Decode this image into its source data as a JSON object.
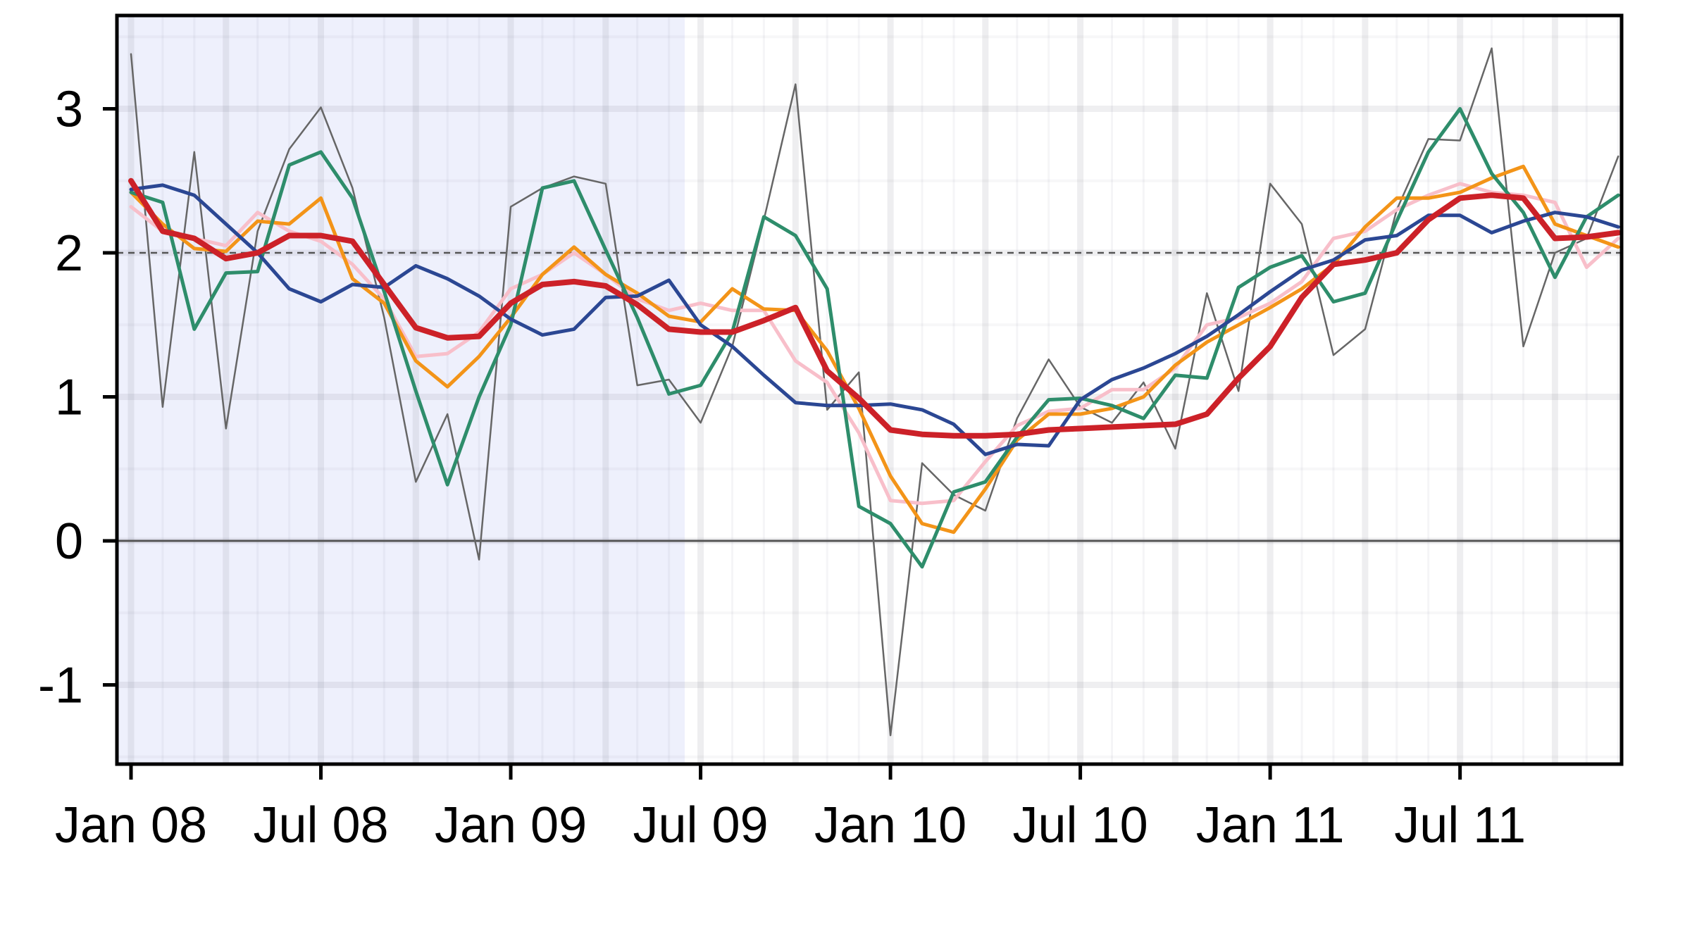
{
  "chart_data": {
    "type": "line",
    "title": "",
    "xlabel": "",
    "ylabel": "",
    "xlim": [
      "2008-01",
      "2011-12"
    ],
    "ylim": [
      -1.6,
      3.65
    ],
    "y_ticks": [
      -1,
      0,
      1,
      2,
      3
    ],
    "y_tick_labels": [
      "-1",
      "0",
      "1",
      "2",
      "3"
    ],
    "x_ticks": [
      "2008-01",
      "2008-07",
      "2009-01",
      "2009-07",
      "2010-01",
      "2010-07",
      "2011-01",
      "2011-07"
    ],
    "x_tick_labels": [
      "Jan 08",
      "Jul 08",
      "Jan 09",
      "Jul 09",
      "Jan 10",
      "Jul 10",
      "Jan 11",
      "Jul 11"
    ],
    "grid": true,
    "shaded_region": {
      "start": "2008-01",
      "end": "2009-06",
      "color": "#eef0fc"
    },
    "reference_lines": [
      {
        "y": 2,
        "style": "dashed",
        "color": "#555555"
      },
      {
        "y": 0,
        "style": "solid",
        "color": "#555555"
      }
    ],
    "x": [
      "2008-01",
      "2008-02",
      "2008-03",
      "2008-04",
      "2008-05",
      "2008-06",
      "2008-07",
      "2008-08",
      "2008-09",
      "2008-10",
      "2008-11",
      "2008-12",
      "2009-01",
      "2009-02",
      "2009-03",
      "2009-04",
      "2009-05",
      "2009-06",
      "2009-07",
      "2009-08",
      "2009-09",
      "2009-10",
      "2009-11",
      "2009-12",
      "2010-01",
      "2010-02",
      "2010-03",
      "2010-04",
      "2010-05",
      "2010-06",
      "2010-07",
      "2010-08",
      "2010-09",
      "2010-10",
      "2010-11",
      "2010-12",
      "2011-01",
      "2011-02",
      "2011-03",
      "2011-04",
      "2011-05",
      "2011-06",
      "2011-07",
      "2011-08",
      "2011-09",
      "2011-10",
      "2011-11",
      "2011-12"
    ],
    "series": [
      {
        "color": "#666666",
        "width": 2.5,
        "values": [
          3.38,
          0.93,
          2.7,
          0.78,
          2.15,
          2.72,
          3.01,
          2.45,
          1.55,
          0.41,
          0.88,
          -0.13,
          2.32,
          2.45,
          2.53,
          2.48,
          1.08,
          1.12,
          0.82,
          1.35,
          2.23,
          3.17,
          0.91,
          1.17,
          -1.35,
          0.54,
          0.32,
          0.21,
          0.85,
          1.26,
          0.93,
          0.82,
          1.1,
          0.64,
          1.72,
          1.04,
          2.48,
          2.2,
          1.29,
          1.47,
          2.3,
          2.79,
          2.78,
          3.42,
          1.35,
          2.0,
          2.1,
          2.67
        ]
      },
      {
        "color": "#f8bfca",
        "width": 5,
        "values": [
          2.32,
          2.15,
          2.1,
          2.05,
          2.28,
          2.15,
          2.08,
          1.92,
          1.68,
          1.28,
          1.3,
          1.45,
          1.75,
          1.85,
          2.0,
          1.85,
          1.68,
          1.6,
          1.65,
          1.6,
          1.6,
          1.25,
          1.1,
          0.75,
          0.28,
          0.26,
          0.28,
          0.55,
          0.8,
          0.9,
          0.92,
          1.05,
          1.05,
          1.2,
          1.5,
          1.55,
          1.65,
          1.8,
          2.1,
          2.15,
          2.3,
          2.4,
          2.48,
          2.42,
          2.4,
          2.35,
          1.9,
          2.1
        ]
      },
      {
        "color": "#f39418",
        "width": 5,
        "values": [
          2.42,
          2.2,
          2.03,
          2.01,
          2.22,
          2.2,
          2.38,
          1.82,
          1.65,
          1.25,
          1.07,
          1.28,
          1.55,
          1.85,
          2.04,
          1.85,
          1.72,
          1.56,
          1.52,
          1.75,
          1.61,
          1.6,
          1.32,
          0.92,
          0.45,
          0.12,
          0.06,
          0.36,
          0.7,
          0.88,
          0.88,
          0.92,
          1.0,
          1.22,
          1.38,
          1.5,
          1.62,
          1.75,
          1.92,
          2.18,
          2.38,
          2.38,
          2.42,
          2.52,
          2.6,
          2.2,
          2.12,
          2.04
        ]
      },
      {
        "color": "#2e8d6b",
        "width": 5,
        "values": [
          2.42,
          2.35,
          1.47,
          1.86,
          1.87,
          2.61,
          2.7,
          2.38,
          1.73,
          1.04,
          0.39,
          1.0,
          1.5,
          2.45,
          2.5,
          2.02,
          1.55,
          1.02,
          1.08,
          1.45,
          2.25,
          2.12,
          1.75,
          0.24,
          0.12,
          -0.18,
          0.34,
          0.41,
          0.72,
          0.98,
          0.99,
          0.94,
          0.85,
          1.15,
          1.13,
          1.76,
          1.9,
          1.98,
          1.66,
          1.72,
          2.22,
          2.7,
          3.0,
          2.55,
          2.28,
          1.83,
          2.25,
          2.4
        ]
      },
      {
        "color": "#2b4793",
        "width": 5,
        "values": [
          2.44,
          2.47,
          2.4,
          2.2,
          2.0,
          1.75,
          1.66,
          1.78,
          1.76,
          1.91,
          1.82,
          1.7,
          1.54,
          1.43,
          1.47,
          1.69,
          1.7,
          1.81,
          1.5,
          1.35,
          1.15,
          0.96,
          0.94,
          0.94,
          0.95,
          0.91,
          0.81,
          0.6,
          0.67,
          0.66,
          0.98,
          1.12,
          1.2,
          1.3,
          1.42,
          1.57,
          1.73,
          1.88,
          1.95,
          2.09,
          2.12,
          2.26,
          2.26,
          2.14,
          2.22,
          2.28,
          2.25,
          2.18
        ]
      },
      {
        "color": "#cc2128",
        "width": 8,
        "values": [
          2.5,
          2.15,
          2.1,
          1.96,
          2.0,
          2.12,
          2.12,
          2.08,
          1.78,
          1.48,
          1.41,
          1.42,
          1.65,
          1.78,
          1.8,
          1.77,
          1.64,
          1.47,
          1.45,
          1.45,
          1.53,
          1.62,
          1.18,
          0.99,
          0.77,
          0.74,
          0.73,
          0.73,
          0.74,
          0.77,
          0.78,
          0.79,
          0.8,
          0.81,
          0.88,
          1.13,
          1.35,
          1.69,
          1.92,
          1.95,
          2.0,
          2.23,
          2.38,
          2.4,
          2.38,
          2.1,
          2.11,
          2.14
        ]
      }
    ]
  }
}
